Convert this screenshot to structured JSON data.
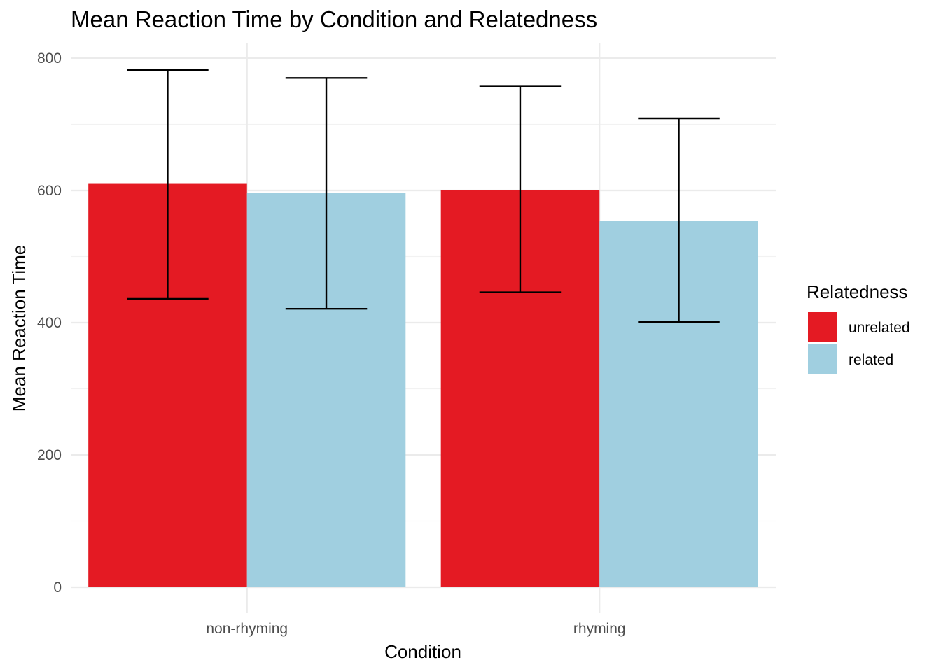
{
  "chart_data": {
    "type": "bar",
    "title": "Mean Reaction Time by Condition and Relatedness",
    "xlabel": "Condition",
    "ylabel": "Mean Reaction Time",
    "categories": [
      "non-rhyming",
      "rhyming"
    ],
    "series": [
      {
        "name": "unrelated",
        "color": "#e41a23",
        "values": [
          610,
          601
        ],
        "error_low": [
          436,
          446
        ],
        "error_high": [
          782,
          757
        ]
      },
      {
        "name": "related",
        "color": "#a0cfe0",
        "values": [
          596,
          554
        ],
        "error_low": [
          421,
          401
        ],
        "error_high": [
          770,
          709
        ]
      }
    ],
    "ylim": [
      -20,
      820
    ],
    "yticks": [
      0,
      200,
      400,
      600,
      800
    ],
    "grid": true,
    "legend": {
      "title": "Relatedness",
      "placement": "right"
    }
  }
}
